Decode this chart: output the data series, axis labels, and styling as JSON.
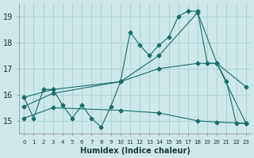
{
  "xlabel": "Humidex (Indice chaleur)",
  "background_color": "#cce8e8",
  "grid_color": "#aad4d4",
  "line_color": "#1a6e6a",
  "xlim": [
    -0.5,
    23.5
  ],
  "ylim": [
    14.5,
    19.5
  ],
  "yticks": [
    15,
    16,
    17,
    18,
    19
  ],
  "xtick_labels": [
    "0",
    "1",
    "2",
    "3",
    "4",
    "5",
    "6",
    "7",
    "8",
    "9",
    "10",
    "11",
    "12",
    "13",
    "14",
    "15",
    "16",
    "17",
    "18",
    "19",
    "20",
    "21",
    "22",
    "23"
  ],
  "line1_x": [
    0,
    1,
    2,
    3,
    4,
    5,
    6,
    7,
    8,
    9,
    10,
    11,
    12,
    13,
    14,
    15,
    16,
    17,
    18,
    19,
    20,
    21,
    22,
    23
  ],
  "line1_y": [
    15.9,
    15.1,
    16.2,
    16.2,
    15.6,
    15.1,
    15.6,
    15.1,
    14.75,
    15.55,
    16.5,
    18.4,
    17.9,
    17.5,
    17.9,
    18.2,
    19.0,
    19.2,
    19.2,
    17.2,
    17.2,
    16.5,
    14.9,
    14.9
  ],
  "line2_x": [
    0,
    3,
    10,
    14,
    18,
    20,
    23
  ],
  "line2_y": [
    15.9,
    16.2,
    16.5,
    17.5,
    19.15,
    17.2,
    14.9
  ],
  "line3_x": [
    0,
    3,
    10,
    14,
    18,
    20,
    23
  ],
  "line3_y": [
    15.55,
    16.05,
    16.5,
    17.0,
    17.2,
    17.2,
    16.3
  ],
  "line4_x": [
    0,
    3,
    10,
    14,
    18,
    20,
    23
  ],
  "line4_y": [
    15.1,
    15.5,
    15.4,
    15.3,
    15.0,
    14.95,
    14.9
  ]
}
